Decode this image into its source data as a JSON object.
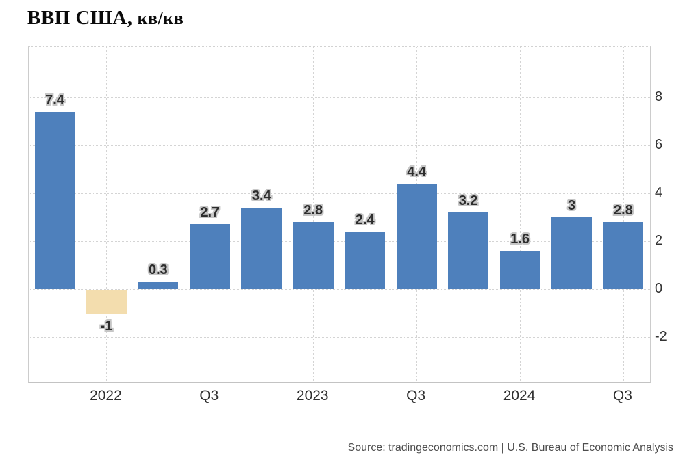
{
  "title": {
    "main": "ВВП США,",
    "sub": " кв/кв"
  },
  "source": "Source: tradingeconomics.com | U.S. Bureau of Economic Analysis",
  "colors": {
    "bar_positive": "#4e80bc",
    "bar_negative": "#f3ddae",
    "grid": "#d4d4d4",
    "plot_border": "#cccccc",
    "axis_label": "#333333",
    "value_label": "#2d2d2d",
    "value_label_halo": "#c6c6c6",
    "source_text": "#4d4d4d",
    "background": "#ffffff"
  },
  "chart_data": {
    "type": "bar",
    "title": "ВВП США, кв/кв",
    "values": [
      7.4,
      -1,
      0.3,
      2.7,
      3.4,
      2.8,
      2.4,
      4.4,
      3.2,
      1.6,
      3,
      2.8
    ],
    "value_labels": [
      "7.4",
      "-1",
      "0.3",
      "2.7",
      "3.4",
      "2.8",
      "2.4",
      "4.4",
      "3.2",
      "1.6",
      "3",
      "2.8"
    ],
    "x_tick_labels": [
      "2022",
      "Q3",
      "2023",
      "Q3",
      "2024",
      "Q3"
    ],
    "x_tick_bar_indices": [
      1,
      3,
      5,
      7,
      9,
      11
    ],
    "y_ticks": [
      8,
      6,
      4,
      2,
      0,
      -2
    ],
    "ylim": [
      -3.9,
      10.1
    ],
    "grid": true,
    "legend": false,
    "y_axis_side": "right",
    "negative_bar_indices": [
      1
    ]
  }
}
